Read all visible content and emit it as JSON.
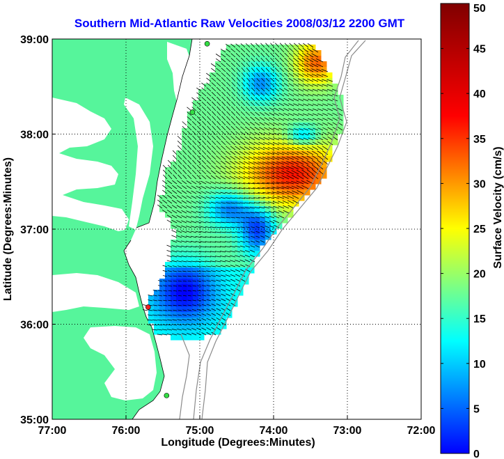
{
  "title": "Southern Mid-Atlantic Raw Velocities 2008/03/12 2200 GMT",
  "xlabel": "Longitude (Degrees:Minutes)",
  "ylabel": "Latitude (Degrees:Minutes)",
  "x_ticks": [
    "77:00",
    "76:00",
    "75:00",
    "74:00",
    "73:00",
    "72:00"
  ],
  "y_ticks": [
    "39:00",
    "38:00",
    "37:00",
    "36:00",
    "35:00"
  ],
  "colorbar": {
    "label": "Surface Velocity (cm/s)",
    "ticks": [
      "50",
      "45",
      "40",
      "35",
      "30",
      "25",
      "20",
      "15",
      "10",
      "5",
      "0"
    ],
    "range": [
      0,
      50
    ],
    "colormap": "jet"
  },
  "colors": {
    "land": "#56f59b",
    "water": "#ffffff",
    "title": "#0000ff",
    "arrows": "#000000",
    "bathymetry": "#8a8a8a",
    "site_green": "#33dd44",
    "site_red": "#ee2222"
  },
  "map": {
    "lon_range": [
      -77,
      -72
    ],
    "lat_range": [
      35,
      39
    ],
    "grid": "dotted",
    "sites": [
      {
        "lon": -74.9,
        "lat": 38.95,
        "color": "green"
      },
      {
        "lon": -75.1,
        "lat": 38.23,
        "color": "green"
      },
      {
        "lon": -75.7,
        "lat": 36.18,
        "color": "red"
      },
      {
        "lon": -75.45,
        "lat": 35.25,
        "color": "green"
      }
    ]
  }
}
